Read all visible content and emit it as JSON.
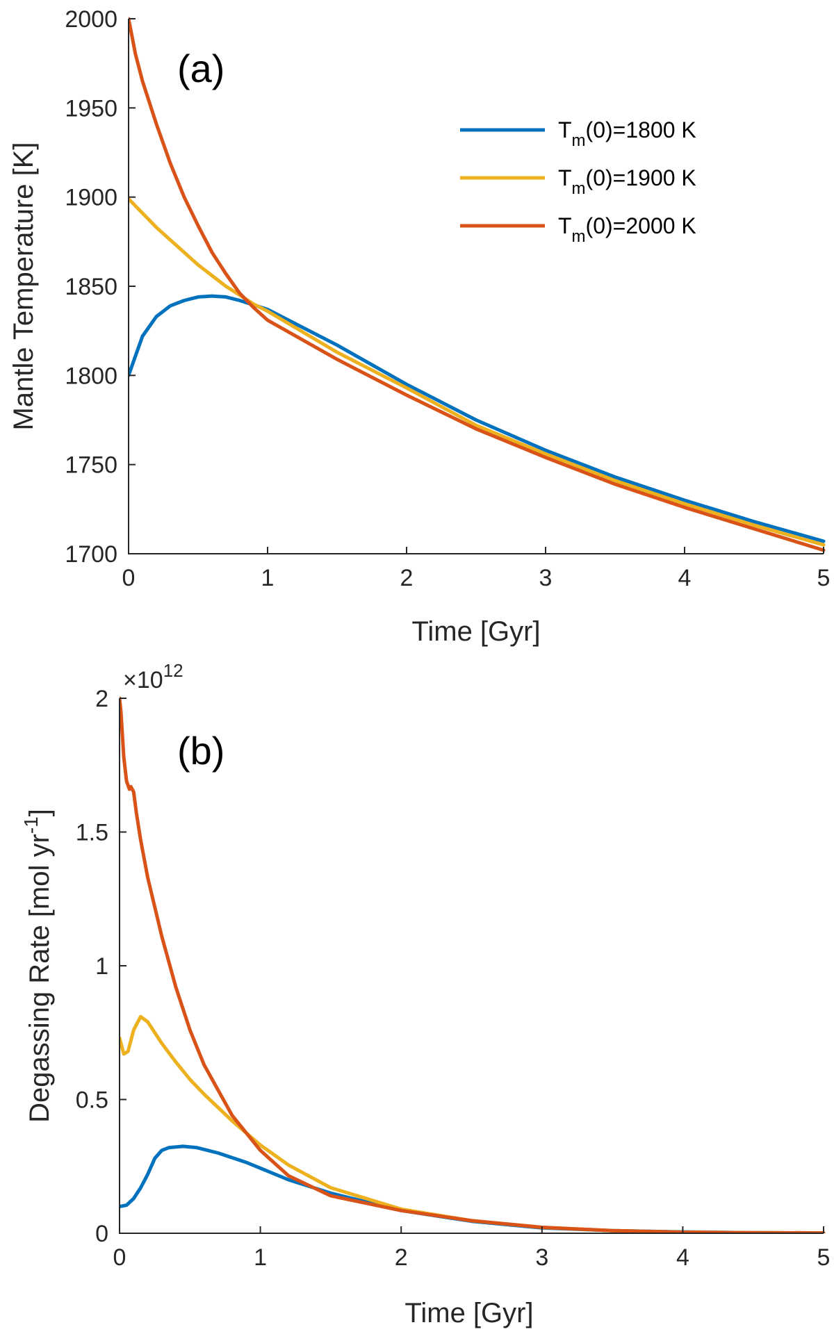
{
  "colors": {
    "tm1800": "#0072BD",
    "tm1900": "#EDB120",
    "tm2000": "#D95319"
  },
  "legend": {
    "entries": [
      {
        "key": "tm1800",
        "prefix": "T",
        "sub": "m",
        "suffix": "(0)=1800 K"
      },
      {
        "key": "tm1900",
        "prefix": "T",
        "sub": "m",
        "suffix": "(0)=1900 K"
      },
      {
        "key": "tm2000",
        "prefix": "T",
        "sub": "m",
        "suffix": "(0)=2000 K"
      }
    ]
  },
  "chart_data": [
    {
      "type": "line",
      "panel_label": "(a)",
      "xlabel": "Time [Gyr]",
      "ylabel": "Mantle Temperature [K]",
      "xlim": [
        0,
        5
      ],
      "ylim": [
        1700,
        2000
      ],
      "xticks": [
        "0",
        "1",
        "2",
        "3",
        "4",
        "5"
      ],
      "yticks": [
        "1700",
        "1750",
        "1800",
        "1850",
        "1900",
        "1950",
        "2000"
      ],
      "legend_position": "top-right",
      "grid": false,
      "series": [
        {
          "name": "Tm(0)=1800 K",
          "color_key": "tm1800",
          "x": [
            0,
            0.1,
            0.2,
            0.3,
            0.4,
            0.5,
            0.6,
            0.7,
            0.8,
            0.9,
            1.0,
            1.5,
            2.0,
            2.5,
            3.0,
            3.5,
            4.0,
            4.5,
            5.0
          ],
          "y": [
            1800,
            1822,
            1833,
            1839,
            1842,
            1844,
            1844.5,
            1844,
            1842,
            1839.5,
            1837,
            1817,
            1795,
            1775,
            1758,
            1743,
            1730,
            1718,
            1707
          ]
        },
        {
          "name": "Tm(0)=1900 K",
          "color_key": "tm1900",
          "x": [
            0,
            0.1,
            0.2,
            0.3,
            0.4,
            0.5,
            0.6,
            0.7,
            0.8,
            0.9,
            1.0,
            1.5,
            2.0,
            2.5,
            3.0,
            3.5,
            4.0,
            4.5,
            5.0
          ],
          "y": [
            1899,
            1891,
            1883,
            1876,
            1869,
            1862,
            1856,
            1850,
            1845,
            1840,
            1836,
            1813,
            1793,
            1772,
            1756,
            1741,
            1728,
            1716,
            1705
          ]
        },
        {
          "name": "Tm(0)=2000 K",
          "color_key": "tm2000",
          "x": [
            0,
            0.05,
            0.1,
            0.2,
            0.3,
            0.4,
            0.5,
            0.6,
            0.7,
            0.8,
            0.9,
            1.0,
            1.5,
            2.0,
            2.5,
            3.0,
            3.5,
            4.0,
            4.5,
            5.0
          ],
          "y": [
            2000,
            1980,
            1965,
            1941,
            1919,
            1900,
            1884,
            1869,
            1857,
            1846,
            1838,
            1831,
            1809,
            1789,
            1770,
            1754,
            1739,
            1726,
            1714,
            1702
          ]
        }
      ]
    },
    {
      "type": "line",
      "panel_label": "(b)",
      "xlabel": "Time [Gyr]",
      "ylabel_main": "Degassing Rate [mol yr",
      "ylabel_sup": "-1",
      "ylabel_end": "]",
      "exponent_mult": "×10",
      "exponent_power": "12",
      "xlim": [
        0,
        5
      ],
      "ylim": [
        0,
        2
      ],
      "xticks": [
        "0",
        "1",
        "2",
        "3",
        "4",
        "5"
      ],
      "yticks": [
        "0",
        "0.5",
        "1",
        "1.5",
        "2"
      ],
      "grid": false,
      "series": [
        {
          "name": "Tm(0)=1800 K",
          "color_key": "tm1800",
          "x": [
            0,
            0.05,
            0.1,
            0.15,
            0.2,
            0.25,
            0.3,
            0.35,
            0.45,
            0.55,
            0.7,
            0.9,
            1.2,
            1.5,
            2.0,
            2.5,
            3.0,
            3.5,
            4.0,
            4.5,
            5.0
          ],
          "y": [
            0.1,
            0.105,
            0.13,
            0.17,
            0.22,
            0.28,
            0.31,
            0.32,
            0.325,
            0.32,
            0.3,
            0.265,
            0.2,
            0.15,
            0.085,
            0.045,
            0.02,
            0.01,
            0.005,
            0.002,
            0.001
          ]
        },
        {
          "name": "Tm(0)=1900 K",
          "color_key": "tm1900",
          "x": [
            0,
            0.03,
            0.06,
            0.1,
            0.15,
            0.2,
            0.3,
            0.4,
            0.5,
            0.6,
            0.8,
            1.0,
            1.2,
            1.5,
            2.0,
            2.5,
            3.0,
            3.5,
            4.0,
            4.5,
            5.0
          ],
          "y": [
            0.73,
            0.67,
            0.68,
            0.76,
            0.81,
            0.79,
            0.71,
            0.64,
            0.575,
            0.52,
            0.42,
            0.33,
            0.255,
            0.17,
            0.09,
            0.047,
            0.022,
            0.01,
            0.004,
            0.002,
            0.001
          ]
        },
        {
          "name": "Tm(0)=2000 K",
          "color_key": "tm2000",
          "x": [
            0,
            0.01,
            0.03,
            0.05,
            0.07,
            0.08,
            0.1,
            0.12,
            0.15,
            0.2,
            0.3,
            0.4,
            0.5,
            0.6,
            0.8,
            1.0,
            1.2,
            1.5,
            2.0,
            2.5,
            3.0,
            3.5,
            4.0,
            4.5,
            5.0
          ],
          "y": [
            2.0,
            1.95,
            1.78,
            1.69,
            1.66,
            1.67,
            1.65,
            1.57,
            1.47,
            1.33,
            1.11,
            0.92,
            0.76,
            0.63,
            0.44,
            0.31,
            0.215,
            0.14,
            0.085,
            0.047,
            0.022,
            0.01,
            0.004,
            0.002,
            0.001
          ]
        }
      ]
    }
  ]
}
